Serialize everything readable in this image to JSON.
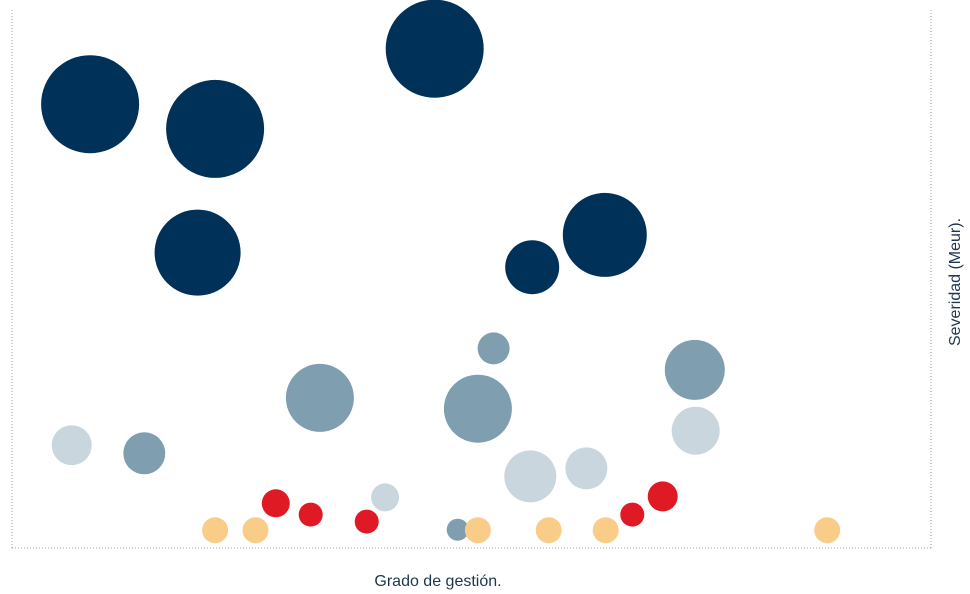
{
  "chart_data": {
    "type": "scatter",
    "xlabel": "Grado de gestión.",
    "ylabel": "Severidad (Meur).",
    "xlim": [
      0,
      100
    ],
    "ylim": [
      0,
      100
    ],
    "grid": false,
    "colors": {
      "navy": "#003159",
      "steel": "#7f9fb0",
      "light": "#cad6de",
      "red": "#e01a24",
      "peach": "#f9cd88",
      "frame": "#8aa0b4"
    },
    "series": [
      {
        "color_key": "navy",
        "points": [
          {
            "x": 8.5,
            "y": 82.5,
            "size": 49
          },
          {
            "x": 22.1,
            "y": 77.9,
            "size": 49
          },
          {
            "x": 46.0,
            "y": 92.8,
            "size": 49
          },
          {
            "x": 20.2,
            "y": 54.9,
            "size": 43
          },
          {
            "x": 64.5,
            "y": 58.2,
            "size": 42
          },
          {
            "x": 56.6,
            "y": 52.2,
            "size": 27
          }
        ]
      },
      {
        "color_key": "steel",
        "points": [
          {
            "x": 33.5,
            "y": 27.9,
            "size": 34
          },
          {
            "x": 50.7,
            "y": 25.9,
            "size": 34
          },
          {
            "x": 74.3,
            "y": 33.1,
            "size": 30
          },
          {
            "x": 52.4,
            "y": 37.1,
            "size": 16
          },
          {
            "x": 14.4,
            "y": 17.6,
            "size": 21
          },
          {
            "x": 48.5,
            "y": 3.4,
            "size": 11
          }
        ]
      },
      {
        "color_key": "light",
        "points": [
          {
            "x": 6.5,
            "y": 19.1,
            "size": 20
          },
          {
            "x": 40.6,
            "y": 9.4,
            "size": 14
          },
          {
            "x": 56.4,
            "y": 13.3,
            "size": 26
          },
          {
            "x": 62.5,
            "y": 14.8,
            "size": 21
          },
          {
            "x": 74.4,
            "y": 21.8,
            "size": 24
          }
        ]
      },
      {
        "color_key": "red",
        "points": [
          {
            "x": 28.7,
            "y": 8.3,
            "size": 14
          },
          {
            "x": 32.5,
            "y": 6.2,
            "size": 12
          },
          {
            "x": 38.6,
            "y": 4.9,
            "size": 12
          },
          {
            "x": 67.5,
            "y": 6.2,
            "size": 12
          },
          {
            "x": 70.8,
            "y": 9.6,
            "size": 15
          }
        ]
      },
      {
        "color_key": "peach",
        "points": [
          {
            "x": 22.1,
            "y": 3.3,
            "size": 13
          },
          {
            "x": 26.5,
            "y": 3.3,
            "size": 13
          },
          {
            "x": 50.7,
            "y": 3.3,
            "size": 13
          },
          {
            "x": 58.4,
            "y": 3.3,
            "size": 13
          },
          {
            "x": 64.6,
            "y": 3.3,
            "size": 13
          },
          {
            "x": 88.7,
            "y": 3.3,
            "size": 13
          }
        ]
      }
    ]
  }
}
